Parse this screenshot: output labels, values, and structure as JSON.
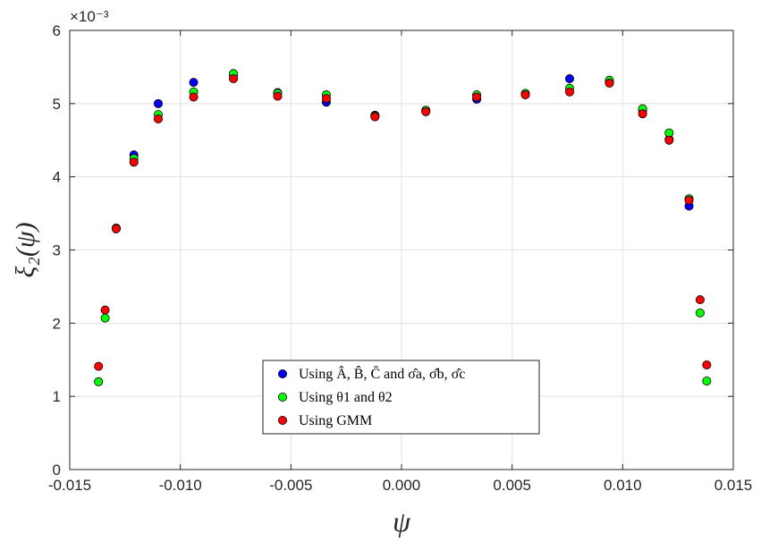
{
  "chart_data": {
    "type": "scatter",
    "title": "",
    "xlabel": "ψ",
    "ylabel": "ξ₂(ψ)",
    "y_exponent_label": "×10⁻³",
    "xlim": [
      -0.015,
      0.015
    ],
    "ylim": [
      0,
      6
    ],
    "x_ticks": [
      -0.015,
      -0.01,
      -0.005,
      0.0,
      0.005,
      0.01,
      0.015
    ],
    "x_tick_labels": [
      "-0.015",
      "-0.010",
      "-0.005",
      "0.000",
      "0.005",
      "0.010",
      "0.015"
    ],
    "y_ticks": [
      0,
      1,
      2,
      3,
      4,
      5,
      6
    ],
    "y_tick_labels": [
      "0",
      "1",
      "2",
      "3",
      "4",
      "5",
      "6"
    ],
    "grid": true,
    "legend_position": "bottom-center",
    "series": [
      {
        "name": "Using Â, B̂, Ĉ and σ̂a, σ̂b, σ̂c",
        "color": "#0000ff",
        "points": [
          [
            -0.0129,
            3.29
          ],
          [
            -0.0121,
            4.3
          ],
          [
            -0.011,
            5.0
          ],
          [
            -0.0094,
            5.29
          ],
          [
            -0.0076,
            5.39
          ],
          [
            -0.0056,
            5.15
          ],
          [
            -0.0034,
            5.02
          ],
          [
            -0.0012,
            4.84
          ],
          [
            0.0011,
            4.9
          ],
          [
            0.0034,
            5.06
          ],
          [
            0.0056,
            5.13
          ],
          [
            0.0076,
            5.34
          ],
          [
            0.0094,
            5.3
          ],
          [
            0.0109,
            4.91
          ],
          [
            0.0121,
            4.51
          ],
          [
            0.013,
            3.6
          ]
        ]
      },
      {
        "name": "Using θ1 and θ2",
        "color": "#00ff00",
        "points": [
          [
            -0.0137,
            1.2
          ],
          [
            -0.0134,
            2.07
          ],
          [
            -0.0129,
            3.3
          ],
          [
            -0.0121,
            4.25
          ],
          [
            -0.011,
            4.85
          ],
          [
            -0.0094,
            5.16
          ],
          [
            -0.0076,
            5.41
          ],
          [
            -0.0056,
            5.14
          ],
          [
            -0.0034,
            5.12
          ],
          [
            -0.0012,
            4.83
          ],
          [
            0.0011,
            4.91
          ],
          [
            0.0034,
            5.12
          ],
          [
            0.0056,
            5.14
          ],
          [
            0.0076,
            5.21
          ],
          [
            0.0094,
            5.32
          ],
          [
            0.0109,
            4.93
          ],
          [
            0.0121,
            4.6
          ],
          [
            0.013,
            3.7
          ],
          [
            0.0135,
            2.14
          ],
          [
            0.0138,
            1.21
          ]
        ]
      },
      {
        "name": "Using GMM",
        "color": "#ff0000",
        "points": [
          [
            -0.0137,
            1.41
          ],
          [
            -0.0134,
            2.18
          ],
          [
            -0.0129,
            3.29
          ],
          [
            -0.0121,
            4.2
          ],
          [
            -0.011,
            4.79
          ],
          [
            -0.0094,
            5.09
          ],
          [
            -0.0076,
            5.34
          ],
          [
            -0.0056,
            5.1
          ],
          [
            -0.0034,
            5.07
          ],
          [
            -0.0012,
            4.82
          ],
          [
            0.0011,
            4.89
          ],
          [
            0.0034,
            5.09
          ],
          [
            0.0056,
            5.12
          ],
          [
            0.0076,
            5.16
          ],
          [
            0.0094,
            5.28
          ],
          [
            0.0109,
            4.86
          ],
          [
            0.0121,
            4.5
          ],
          [
            0.013,
            3.68
          ],
          [
            0.0135,
            2.32
          ],
          [
            0.0138,
            1.43
          ]
        ]
      }
    ]
  }
}
